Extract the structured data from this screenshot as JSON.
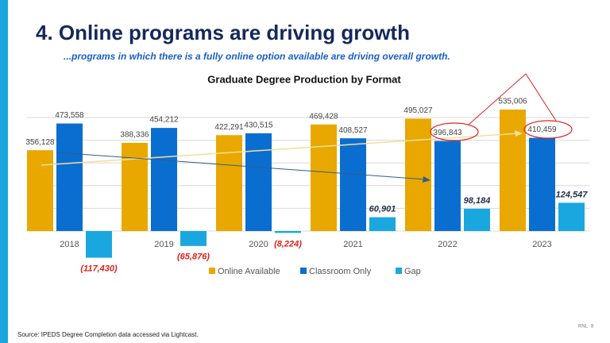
{
  "title": "4. Online programs are driving growth",
  "subtitle": "...programs in which there is a fully online option available are driving overall growth.",
  "chart_data": {
    "type": "bar",
    "title": "Graduate Degree Production by Format",
    "categories": [
      "2018",
      "2019",
      "2020",
      "2021",
      "2022",
      "2023"
    ],
    "series": [
      {
        "name": "Online Available",
        "color": "#E8A800",
        "values": [
          356128,
          388336,
          422291,
          469428,
          495027,
          535006
        ],
        "value_labels": [
          "356,128",
          "388,336",
          "422,291",
          "469,428",
          "495,027",
          "535,006"
        ]
      },
      {
        "name": "Classroom Only",
        "color": "#0A6ED1",
        "values": [
          473558,
          454212,
          430515,
          408527,
          396843,
          410459
        ],
        "value_labels": [
          "473,558",
          "454,212",
          "430,515",
          "408,527",
          "396,843",
          "410,459"
        ]
      },
      {
        "name": "Gap",
        "color": "#1AA7E0",
        "values": [
          -117430,
          -65876,
          -8224,
          60901,
          98184,
          124547
        ],
        "value_labels": [
          "(117,430)",
          "(65,876)",
          "(8,224)",
          "60,901",
          "98,184",
          "124,547"
        ]
      }
    ],
    "ylim": [
      -200000,
      600000
    ],
    "yticks": [
      0,
      100000,
      200000,
      300000,
      400000,
      500000
    ],
    "grid": true,
    "legend": "bottom"
  },
  "source": "Source: IPEDS Degree Completion data accessed via Lightcast.",
  "footer": {
    "brand": "RNL",
    "page": "8"
  }
}
